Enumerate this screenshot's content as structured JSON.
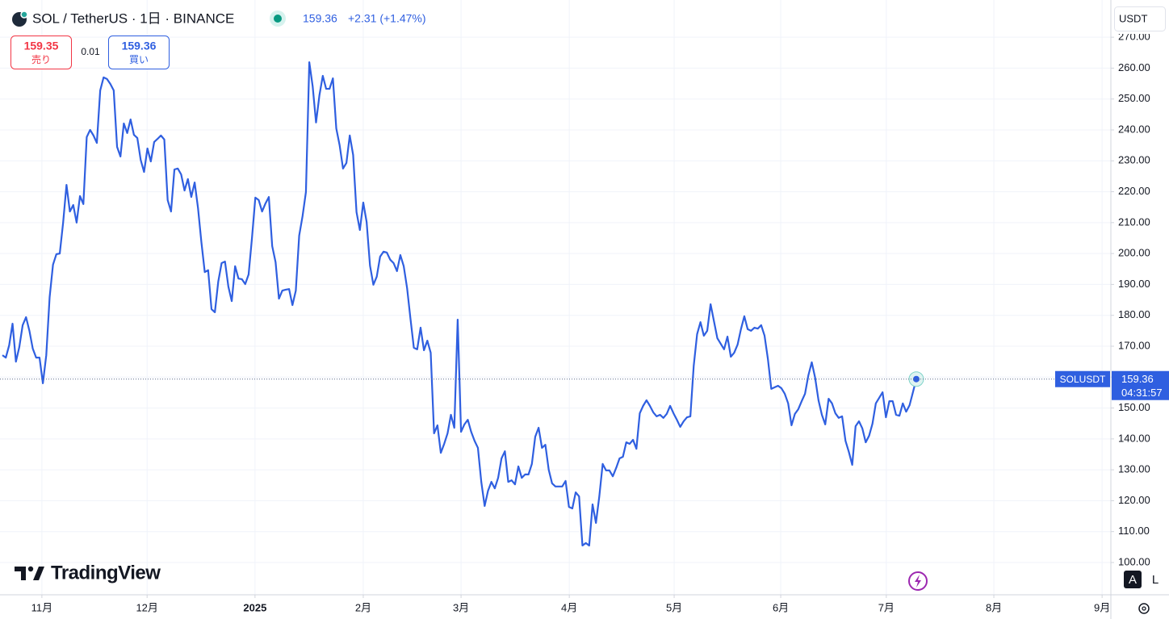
{
  "chart_data": {
    "type": "line",
    "symbol": "SOL / TetherUS · 1日 · BINANCE",
    "last_price": 159.36,
    "change": "+2.31 (+1.47%)",
    "sell_price": "159.35",
    "sell_label": "売り",
    "spread": "0.01",
    "buy_price": "159.36",
    "buy_label": "買い",
    "currency": "USDT",
    "series_label": "SOLUSDT",
    "countdown": "04:31:57",
    "brand": "TradingView",
    "scale_buttons": [
      "A",
      "L"
    ],
    "color": "#2f5fe0",
    "grid": true,
    "values": [
      167.1,
      166.3,
      170.3,
      177.3,
      165.0,
      169.7,
      176.8,
      179.4,
      175.0,
      169.2,
      166.3,
      166.3,
      158.0,
      167.1,
      185.9,
      196.4,
      199.8,
      200.0,
      210.0,
      222.2,
      213.6,
      215.7,
      210.0,
      218.6,
      216.0,
      237.7,
      240.0,
      238.2,
      235.8,
      252.8,
      257.0,
      256.5,
      254.9,
      252.8,
      234.5,
      231.4,
      242.1,
      239.0,
      243.4,
      238.4,
      237.4,
      230.3,
      226.4,
      234.0,
      229.8,
      236.1,
      237.1,
      238.2,
      236.9,
      217.3,
      213.6,
      227.2,
      227.5,
      225.6,
      220.4,
      224.1,
      218.3,
      223.0,
      214.7,
      203.7,
      194.0,
      194.6,
      182.0,
      181.0,
      190.9,
      196.9,
      197.4,
      189.3,
      184.6,
      195.9,
      191.9,
      191.7,
      190.1,
      193.2,
      205.0,
      218.1,
      217.3,
      213.6,
      216.2,
      218.3,
      202.4,
      197.2,
      185.4,
      188.0,
      188.3,
      188.5,
      183.3,
      188.0,
      205.8,
      212.1,
      219.9,
      261.9,
      254.1,
      242.4,
      251.2,
      257.5,
      253.3,
      253.3,
      256.7,
      240.5,
      235.0,
      227.5,
      229.3,
      238.2,
      231.9,
      213.4,
      207.6,
      216.5,
      210.2,
      196.1,
      189.9,
      192.5,
      199.0,
      200.6,
      200.3,
      198.0,
      196.9,
      194.3,
      199.5,
      195.9,
      188.8,
      178.9,
      169.5,
      169.0,
      176.0,
      168.7,
      171.8,
      167.9,
      141.8,
      144.4,
      135.5,
      138.4,
      141.8,
      147.8,
      143.6,
      178.6,
      142.3,
      144.7,
      146.2,
      142.3,
      139.4,
      137.1,
      126.1,
      118.3,
      123.2,
      126.1,
      124.0,
      127.4,
      133.7,
      136.0,
      126.1,
      126.6,
      125.3,
      131.1,
      127.4,
      128.5,
      128.5,
      131.9,
      140.7,
      143.6,
      137.1,
      138.1,
      130.0,
      125.6,
      124.6,
      124.6,
      124.6,
      126.4,
      118.0,
      117.5,
      122.7,
      121.4,
      105.5,
      106.3,
      105.5,
      118.8,
      112.8,
      121.4,
      131.9,
      129.8,
      129.8,
      127.9,
      130.6,
      133.7,
      134.2,
      138.9,
      138.4,
      139.7,
      136.8,
      148.3,
      150.7,
      152.5,
      150.7,
      148.6,
      147.3,
      147.8,
      146.8,
      148.1,
      150.7,
      148.3,
      146.2,
      143.9,
      145.7,
      147.0,
      147.3,
      163.7,
      173.9,
      177.8,
      173.4,
      175.0,
      183.6,
      178.1,
      172.6,
      170.8,
      169.0,
      173.1,
      166.6,
      167.9,
      170.5,
      175.5,
      179.7,
      175.5,
      175.0,
      176.0,
      175.7,
      176.8,
      173.4,
      165.8,
      156.2,
      156.7,
      157.2,
      156.4,
      154.6,
      151.5,
      144.4,
      148.1,
      149.6,
      152.2,
      154.6,
      160.6,
      164.8,
      159.8,
      152.5,
      147.8,
      144.7,
      153.0,
      151.5,
      148.3,
      146.8,
      147.3,
      139.4,
      135.8,
      131.6,
      144.1,
      145.7,
      143.4,
      138.9,
      141.0,
      144.9,
      151.5,
      153.3,
      155.1,
      147.0,
      152.2,
      152.2,
      147.8,
      147.5,
      151.5,
      148.8,
      150.9,
      155.1,
      159.36
    ],
    "xlim": [
      -0.72,
      328.7
    ],
    "xticks": [
      {
        "value": 11.7,
        "label": "11月"
      },
      {
        "value": 42.9,
        "label": "12月"
      },
      {
        "value": 74.9,
        "label": "2025"
      },
      {
        "value": 107.0,
        "label": "2月"
      },
      {
        "value": 136.0,
        "label": "3月"
      },
      {
        "value": 168.1,
        "label": "4月"
      },
      {
        "value": 199.2,
        "label": "5月"
      },
      {
        "value": 230.8,
        "label": "6月"
      },
      {
        "value": 262.1,
        "label": "7月"
      },
      {
        "value": 294.0,
        "label": "8月"
      },
      {
        "value": 326.1,
        "label": "9月"
      }
    ],
    "ylim": [
      89.55,
      282.05
    ],
    "yticks": [
      {
        "value": 100,
        "label": "100.00"
      },
      {
        "value": 110,
        "label": "110.00"
      },
      {
        "value": 120,
        "label": "120.00"
      },
      {
        "value": 130,
        "label": "130.00"
      },
      {
        "value": 140,
        "label": "140.00"
      },
      {
        "value": 150,
        "label": "150.00"
      },
      {
        "value": 160,
        "label": "160.00"
      },
      {
        "value": 170,
        "label": "170.00"
      },
      {
        "value": 180,
        "label": "180.00"
      },
      {
        "value": 190,
        "label": "190.00"
      },
      {
        "value": 200,
        "label": "200.00"
      },
      {
        "value": 210,
        "label": "210.00"
      },
      {
        "value": 220,
        "label": "220.00"
      },
      {
        "value": 230,
        "label": "230.00"
      },
      {
        "value": 240,
        "label": "240.00"
      },
      {
        "value": 250,
        "label": "250.00"
      },
      {
        "value": 260,
        "label": "260.00"
      },
      {
        "value": 270,
        "label": "270.00"
      }
    ]
  }
}
